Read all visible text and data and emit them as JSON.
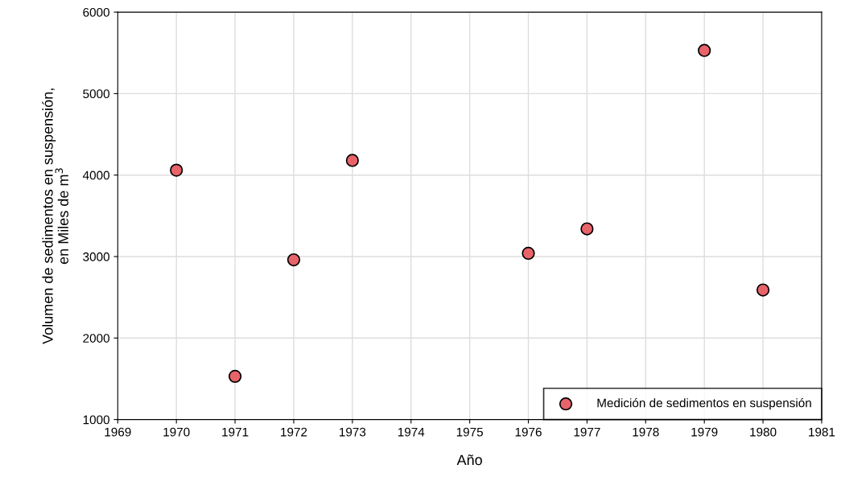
{
  "chart_data": {
    "type": "scatter",
    "xlabel": "Año",
    "ylabel": "Volumen de sedimentos en suspensión,\nen Miles de m$^{3}$",
    "x": [
      1970,
      1971,
      1972,
      1973,
      1976,
      1977,
      1979,
      1980
    ],
    "series": [
      {
        "name": "Medición de sedimentos en suspensión",
        "color": "#e8636a",
        "values": [
          4060,
          1530,
          2960,
          4180,
          3040,
          3340,
          5530,
          2590
        ]
      }
    ],
    "xlim": [
      1969,
      1981
    ],
    "xticks": [
      1969,
      1970,
      1971,
      1972,
      1973,
      1974,
      1975,
      1976,
      1977,
      1978,
      1979,
      1980,
      1981
    ],
    "ylim": [
      1000,
      6000
    ],
    "yticks": [
      1000,
      2000,
      3000,
      4000,
      5000,
      6000
    ],
    "grid": true,
    "legend": "bottom right",
    "marker": "circle"
  }
}
